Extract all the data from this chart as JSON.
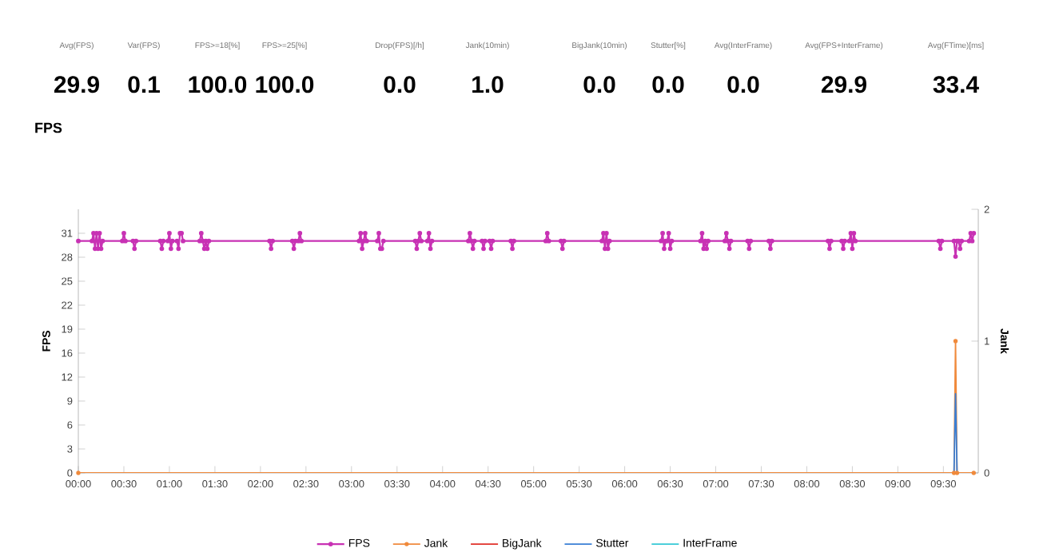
{
  "chart_data": [
    {
      "type": "other",
      "annotations": [
        "Avg(FPS)",
        "29.9",
        "Var(FPS)",
        "0.1",
        "FPS>=18[%]",
        "100.0",
        "FPS>=25[%]",
        "100.0",
        "Drop(FPS)[/h]",
        "0.0",
        "Jank(10min)",
        "1.0",
        "BigJank(10min)",
        "0.0",
        "Stutter[%]",
        "0.0",
        "Avg(InterFrame)",
        "0.0",
        "Avg(FPS+InterFrame)",
        "29.9",
        "Avg(FTime)[ms]",
        "33.4"
      ]
    },
    {
      "type": "line",
      "title": "FPS",
      "ylabel": "FPS",
      "y2label": "Jank",
      "legend": "bottom",
      "xlim": [
        0,
        593
      ],
      "xticks": [
        {
          "value": 0,
          "label": "00:00"
        },
        {
          "value": 30,
          "label": "00:30"
        },
        {
          "value": 60,
          "label": "01:00"
        },
        {
          "value": 90,
          "label": "01:30"
        },
        {
          "value": 120,
          "label": "02:00"
        },
        {
          "value": 150,
          "label": "02:30"
        },
        {
          "value": 180,
          "label": "03:00"
        },
        {
          "value": 210,
          "label": "03:30"
        },
        {
          "value": 240,
          "label": "04:00"
        },
        {
          "value": 270,
          "label": "04:30"
        },
        {
          "value": 300,
          "label": "05:00"
        },
        {
          "value": 330,
          "label": "05:30"
        },
        {
          "value": 360,
          "label": "06:00"
        },
        {
          "value": 390,
          "label": "06:30"
        },
        {
          "value": 420,
          "label": "07:00"
        },
        {
          "value": 450,
          "label": "07:30"
        },
        {
          "value": 480,
          "label": "08:00"
        },
        {
          "value": 510,
          "label": "08:30"
        },
        {
          "value": 540,
          "label": "09:00"
        },
        {
          "value": 570,
          "label": "09:30"
        }
      ],
      "ylim": [
        0,
        34.1
      ],
      "yticks": [
        0,
        {
          "value": 3.1,
          "label": "3"
        },
        {
          "value": 6.2,
          "label": "6"
        },
        {
          "value": 9.3,
          "label": "9"
        },
        {
          "value": 12.4,
          "label": "12"
        },
        {
          "value": 15.5,
          "label": "16"
        },
        {
          "value": 18.6,
          "label": "19"
        },
        {
          "value": 21.7,
          "label": "22"
        },
        {
          "value": 24.8,
          "label": "25"
        },
        {
          "value": 27.9,
          "label": "28"
        },
        31
      ],
      "y2lim": [
        0,
        2
      ],
      "y2ticks": [
        0,
        1,
        2
      ],
      "series": [
        {
          "name": "FPS",
          "color": "#c832b4",
          "marker": "circle",
          "x": [
            0,
            9,
            10,
            11,
            12,
            13,
            14,
            15,
            16,
            29,
            30,
            31,
            36,
            37,
            38,
            54,
            55,
            56,
            59,
            60,
            61,
            62,
            65,
            66,
            67,
            68,
            69,
            80,
            81,
            82,
            83,
            84,
            85,
            86,
            126,
            127,
            128,
            141,
            142,
            143,
            145,
            146,
            147,
            185,
            186,
            187,
            188,
            189,
            190,
            197,
            198,
            199,
            200,
            201,
            222,
            223,
            224,
            225,
            226,
            230,
            231,
            232,
            233,
            257,
            258,
            259,
            260,
            261,
            266,
            267,
            268,
            271,
            272,
            273,
            285,
            286,
            287,
            308,
            309,
            310,
            318,
            319,
            320,
            345,
            346,
            347,
            348,
            349,
            350,
            384,
            385,
            386,
            387,
            388,
            389,
            390,
            391,
            410,
            411,
            412,
            413,
            414,
            415,
            426,
            427,
            428,
            429,
            430,
            441,
            442,
            443,
            455,
            456,
            457,
            494,
            495,
            496,
            503,
            504,
            505,
            508,
            509,
            510,
            511,
            512,
            567,
            568,
            569,
            577,
            578,
            579,
            580,
            581,
            582,
            587,
            588,
            589,
            590
          ],
          "values": [
            30,
            30,
            31,
            29,
            31,
            29,
            31,
            29,
            30,
            30,
            31,
            30,
            30,
            29,
            30,
            30,
            29,
            30,
            30,
            31,
            29,
            30,
            30,
            29,
            31,
            31,
            30,
            30,
            31,
            30,
            29,
            30,
            29,
            30,
            30,
            29,
            30,
            30,
            29,
            30,
            30,
            31,
            30,
            30,
            31,
            29,
            30,
            31,
            30,
            30,
            31,
            29,
            29,
            30,
            30,
            29,
            30,
            31,
            30,
            30,
            31,
            29,
            30,
            30,
            31,
            30,
            29,
            30,
            30,
            29,
            30,
            30,
            29,
            30,
            30,
            29,
            30,
            30,
            31,
            30,
            30,
            29,
            30,
            30,
            31,
            29,
            31,
            29,
            30,
            30,
            31,
            29,
            30,
            30,
            31,
            29,
            30,
            30,
            31,
            29,
            30,
            29,
            30,
            30,
            31,
            30,
            29,
            30,
            30,
            29,
            30,
            30,
            29,
            30,
            30,
            29,
            30,
            30,
            29,
            30,
            30,
            31,
            29,
            31,
            30,
            30,
            29,
            30,
            30,
            28,
            30,
            30,
            29,
            30,
            30,
            31,
            30,
            31
          ]
        },
        {
          "name": "Jank",
          "color": "#f08a3c",
          "marker": "circle",
          "axis": "y2",
          "x": [
            0,
            577,
            578,
            579,
            590
          ],
          "values": [
            0,
            0,
            1,
            0,
            0
          ]
        },
        {
          "name": "BigJank",
          "color": "#e0302a",
          "axis": "y2",
          "values": [
            null
          ]
        },
        {
          "name": "Stutter",
          "color": "#3a7fd5",
          "axis": "y2",
          "x": [
            577,
            578,
            579
          ],
          "values": [
            0,
            0.6,
            0
          ]
        },
        {
          "name": "InterFrame",
          "color": "#35c9d6",
          "axis": "y2",
          "values": [
            null
          ]
        }
      ]
    }
  ]
}
